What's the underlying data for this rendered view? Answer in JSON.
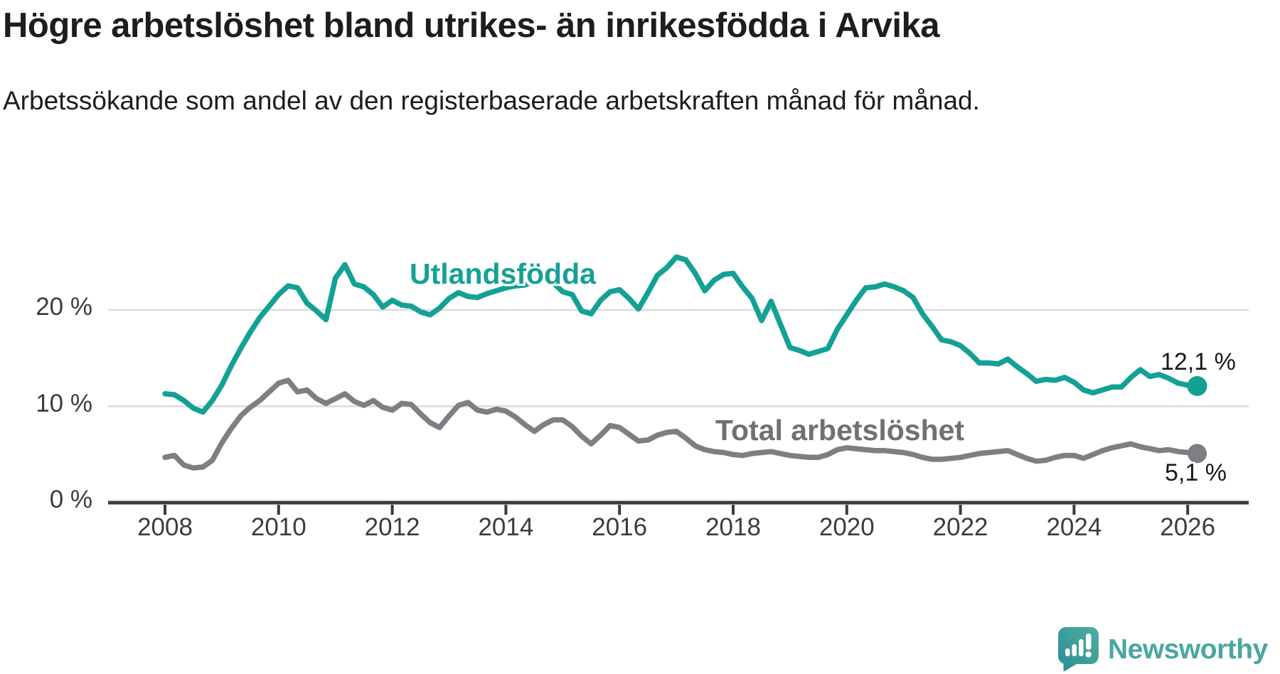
{
  "header": {
    "title": "Högre arbetslöshet bland utrikes- än inrikesfödda i Arvika",
    "subtitle": "Arbetssökande som andel av den registerbaserade arbetskraften månad för månad."
  },
  "chart_data": {
    "type": "line",
    "x_start": 2008.0,
    "x_end": 2026.17,
    "x_step_years": 0.166667,
    "ylim": [
      0,
      26
    ],
    "grid": "horizontal",
    "yticks": [
      {
        "value": 0,
        "label": "0 %"
      },
      {
        "value": 10,
        "label": "10 %"
      },
      {
        "value": 20,
        "label": "20 %"
      }
    ],
    "xticks": [
      {
        "year": 2008,
        "label": "2008"
      },
      {
        "year": 2010,
        "label": "2010"
      },
      {
        "year": 2012,
        "label": "2012"
      },
      {
        "year": 2014,
        "label": "2014"
      },
      {
        "year": 2016,
        "label": "2016"
      },
      {
        "year": 2018,
        "label": "2018"
      },
      {
        "year": 2020,
        "label": "2020"
      },
      {
        "year": 2022,
        "label": "2022"
      },
      {
        "year": 2024,
        "label": "2024"
      },
      {
        "year": 2026,
        "label": "2026"
      }
    ],
    "series": [
      {
        "name": "Utlandsfödda",
        "color": "#14a195",
        "label_color": "#14a195",
        "end_label": "12,1 %",
        "end_value": 12.1,
        "values": [
          11.3,
          11.2,
          10.6,
          9.8,
          9.4,
          10.6,
          12.2,
          14.2,
          16.0,
          17.7,
          19.2,
          20.4,
          21.6,
          22.5,
          22.3,
          20.7,
          19.9,
          19.0,
          23.3,
          24.7,
          22.7,
          22.4,
          21.6,
          20.3,
          21.0,
          20.5,
          20.4,
          19.8,
          19.5,
          20.2,
          21.2,
          21.8,
          21.4,
          21.3,
          21.7,
          22.0,
          22.3,
          22.5,
          22.6,
          23.0,
          23.3,
          22.8,
          21.9,
          21.6,
          19.9,
          19.6,
          21.0,
          21.9,
          22.1,
          21.2,
          20.1,
          21.8,
          23.6,
          24.4,
          25.5,
          25.2,
          23.8,
          22.0,
          23.1,
          23.7,
          23.8,
          22.4,
          21.2,
          18.9,
          20.9,
          18.5,
          16.1,
          15.8,
          15.4,
          15.7,
          16.0,
          18.0,
          19.5,
          21.0,
          22.3,
          22.4,
          22.7,
          22.4,
          22.0,
          21.3,
          19.6,
          18.3,
          16.9,
          16.7,
          16.3,
          15.5,
          14.5,
          14.5,
          14.4,
          14.9,
          14.1,
          13.4,
          12.6,
          12.8,
          12.7,
          13.0,
          12.5,
          11.7,
          11.4,
          11.7,
          12.0,
          12.0,
          13.0,
          13.8,
          13.1,
          13.3,
          12.9,
          12.4,
          12.2,
          12.1
        ]
      },
      {
        "name": "Total arbetslöshet",
        "color": "#7e7e84",
        "label_color": "#6f6f76",
        "end_label": "5,1 %",
        "end_value": 5.1,
        "values": [
          4.7,
          4.9,
          3.9,
          3.6,
          3.7,
          4.4,
          6.2,
          7.7,
          9.0,
          9.9,
          10.6,
          11.5,
          12.4,
          12.7,
          11.5,
          11.7,
          10.8,
          10.3,
          10.8,
          11.3,
          10.5,
          10.1,
          10.6,
          9.9,
          9.6,
          10.3,
          10.2,
          9.2,
          8.3,
          7.8,
          9.0,
          10.1,
          10.4,
          9.6,
          9.4,
          9.7,
          9.5,
          8.9,
          8.1,
          7.4,
          8.1,
          8.6,
          8.6,
          7.9,
          6.9,
          6.1,
          7.0,
          8.0,
          7.8,
          7.1,
          6.4,
          6.5,
          7.0,
          7.3,
          7.4,
          6.7,
          5.9,
          5.5,
          5.3,
          5.2,
          5.0,
          4.9,
          5.1,
          5.2,
          5.3,
          5.1,
          4.9,
          4.8,
          4.7,
          4.7,
          5.0,
          5.5,
          5.7,
          5.6,
          5.5,
          5.4,
          5.4,
          5.3,
          5.2,
          5.0,
          4.7,
          4.5,
          4.5,
          4.6,
          4.7,
          4.9,
          5.1,
          5.2,
          5.3,
          5.4,
          5.0,
          4.6,
          4.3,
          4.4,
          4.7,
          4.9,
          4.9,
          4.6,
          5.0,
          5.4,
          5.7,
          5.9,
          6.1,
          5.8,
          5.6,
          5.4,
          5.5,
          5.3,
          5.2,
          5.1
        ]
      }
    ],
    "colors": {
      "gridline": "#dcdcdc",
      "axis": "#3b3b3b",
      "tick_text": "#3c3c3c"
    }
  },
  "branding": {
    "logo_text": "Newsworthy",
    "color": "#4ba6a1",
    "icon_color": "#35989b"
  }
}
